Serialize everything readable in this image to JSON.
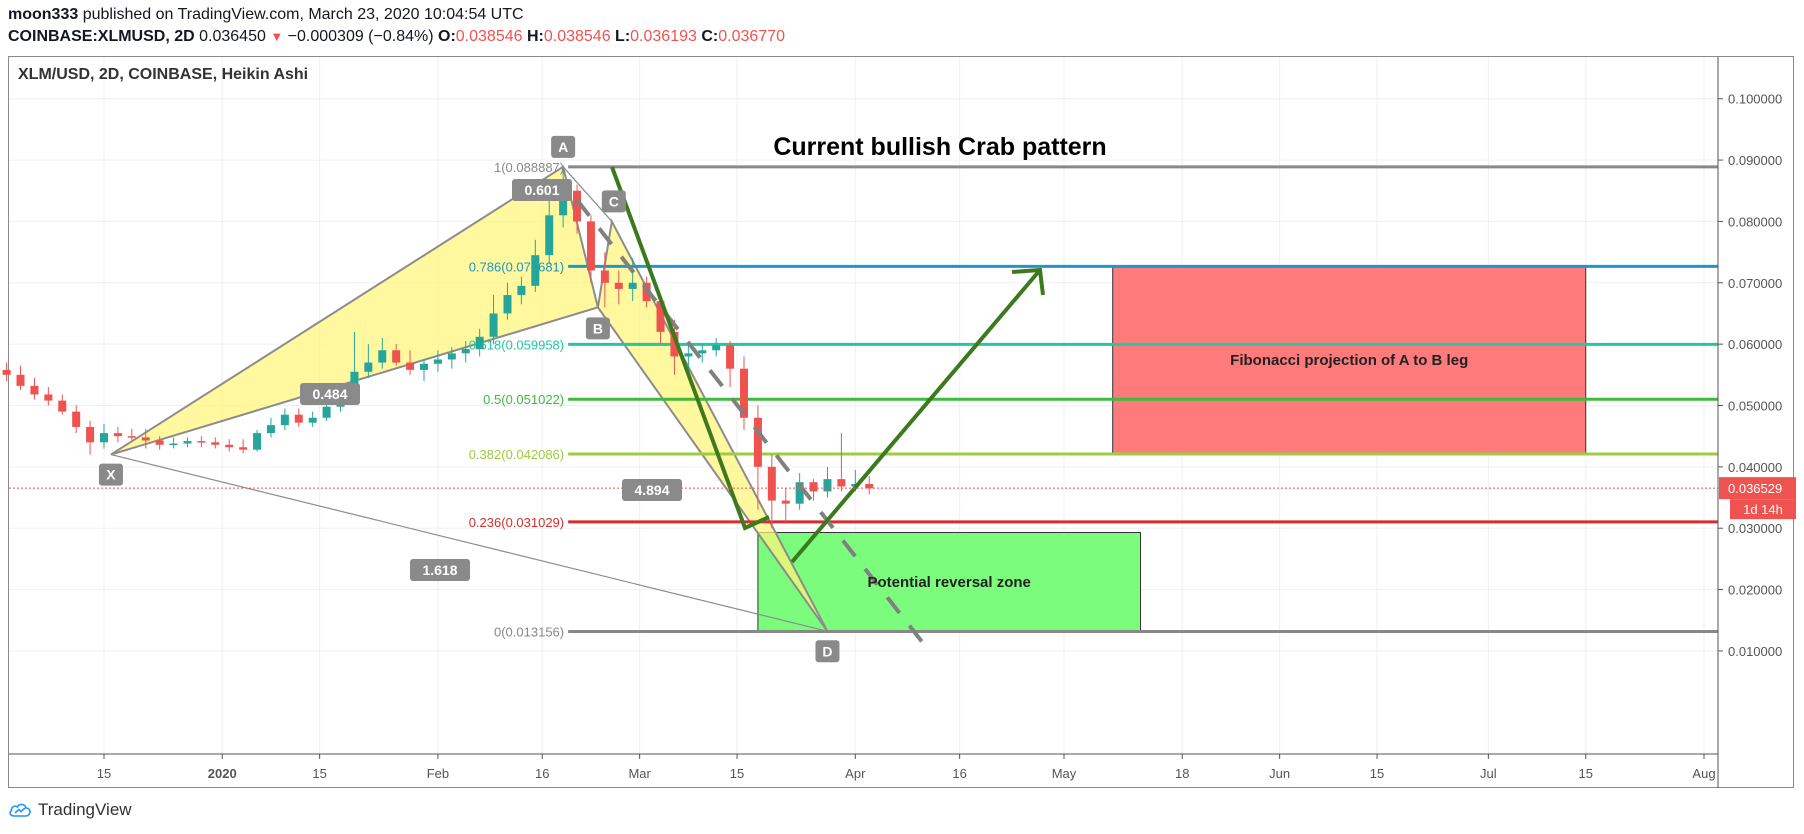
{
  "header": {
    "author": "moon333",
    "published": "published on TradingView.com, March 23, 2020 10:04:54 UTC",
    "symbol": "COINBASE:XLMUSD, 2D",
    "last": "0.036450",
    "change": "−0.000309 (−0.84%)",
    "o_label": "O:",
    "o": "0.038546",
    "h_label": "H:",
    "h": "0.038546",
    "l_label": "L:",
    "l": "0.036193",
    "c_label": "C:",
    "c": "0.036770"
  },
  "chart_title": "XLM/USD, 2D, COINBASE, Heikin Ashi",
  "branding": "TradingView",
  "chart_data": {
    "type": "candlestick",
    "style": "Heikin Ashi",
    "title": "XLM/USD, 2D, COINBASE, Heikin Ashi",
    "colors": {
      "up": "#26a69a",
      "down": "#ef5350",
      "neutral": "#f7a532"
    },
    "y_axis": {
      "range": [
        -0.0068,
        0.1068
      ],
      "ticks": [
        "0.010000",
        "0.020000",
        "0.030000",
        "0.040000",
        "0.050000",
        "0.060000",
        "0.070000",
        "0.080000",
        "0.090000",
        "0.100000"
      ],
      "last_price_label": "0.036529",
      "countdown_label": "1d 14h"
    },
    "x_axis": {
      "ticks": [
        {
          "label": "15",
          "date": "2019-12-15"
        },
        {
          "label": "2020",
          "date": "2020-01-01",
          "bold": true
        },
        {
          "label": "15",
          "date": "2020-01-15"
        },
        {
          "label": "Feb",
          "date": "2020-02-01"
        },
        {
          "label": "16",
          "date": "2020-02-16"
        },
        {
          "label": "Mar",
          "date": "2020-03-01"
        },
        {
          "label": "15",
          "date": "2020-03-15"
        },
        {
          "label": "Apr",
          "date": "2020-04-01"
        },
        {
          "label": "16",
          "date": "2020-04-16"
        },
        {
          "label": "May",
          "date": "2020-05-01"
        },
        {
          "label": "18",
          "date": "2020-05-18"
        },
        {
          "label": "Jun",
          "date": "2020-06-01"
        },
        {
          "label": "15",
          "date": "2020-06-15"
        },
        {
          "label": "Jul",
          "date": "2020-07-01"
        },
        {
          "label": "15",
          "date": "2020-07-15"
        },
        {
          "label": "Aug",
          "date": "2020-08-01"
        }
      ]
    },
    "candles": [
      {
        "date": "2019-11-25",
        "open": 0.0573,
        "high": 0.06,
        "low": 0.054,
        "close": 0.057
      },
      {
        "date": "2019-11-27",
        "open": 0.057,
        "high": 0.059,
        "low": 0.0548,
        "close": 0.0562
      },
      {
        "date": "2019-11-29",
        "open": 0.0562,
        "high": 0.0575,
        "low": 0.0545,
        "close": 0.0558
      },
      {
        "date": "2019-12-01",
        "open": 0.0558,
        "high": 0.057,
        "low": 0.054,
        "close": 0.055
      },
      {
        "date": "2019-12-03",
        "open": 0.055,
        "high": 0.0565,
        "low": 0.0525,
        "close": 0.0532
      },
      {
        "date": "2019-12-05",
        "open": 0.0532,
        "high": 0.0545,
        "low": 0.051,
        "close": 0.0518
      },
      {
        "date": "2019-12-07",
        "open": 0.0518,
        "high": 0.053,
        "low": 0.05,
        "close": 0.0508
      },
      {
        "date": "2019-12-09",
        "open": 0.0508,
        "high": 0.0518,
        "low": 0.0485,
        "close": 0.049
      },
      {
        "date": "2019-12-11",
        "open": 0.049,
        "high": 0.05,
        "low": 0.0455,
        "close": 0.0465
      },
      {
        "date": "2019-12-13",
        "open": 0.0465,
        "high": 0.0475,
        "low": 0.042,
        "close": 0.044
      },
      {
        "date": "2019-12-15",
        "open": 0.044,
        "high": 0.047,
        "low": 0.043,
        "close": 0.0455
      },
      {
        "date": "2019-12-17",
        "open": 0.0455,
        "high": 0.0465,
        "low": 0.044,
        "close": 0.045
      },
      {
        "date": "2019-12-19",
        "open": 0.045,
        "high": 0.0462,
        "low": 0.0442,
        "close": 0.0448
      },
      {
        "date": "2019-12-21",
        "open": 0.0448,
        "high": 0.0462,
        "low": 0.043,
        "close": 0.0443
      },
      {
        "date": "2019-12-23",
        "open": 0.0443,
        "high": 0.045,
        "low": 0.0428,
        "close": 0.0436
      },
      {
        "date": "2019-12-25",
        "open": 0.0436,
        "high": 0.0448,
        "low": 0.043,
        "close": 0.0438
      },
      {
        "date": "2019-12-27",
        "open": 0.0438,
        "high": 0.0448,
        "low": 0.0432,
        "close": 0.0442
      },
      {
        "date": "2019-12-29",
        "open": 0.0442,
        "high": 0.045,
        "low": 0.0432,
        "close": 0.044
      },
      {
        "date": "2019-12-31",
        "open": 0.044,
        "high": 0.0448,
        "low": 0.043,
        "close": 0.0436
      },
      {
        "date": "2020-01-02",
        "open": 0.0436,
        "high": 0.0445,
        "low": 0.0425,
        "close": 0.0432
      },
      {
        "date": "2020-01-04",
        "open": 0.0432,
        "high": 0.0445,
        "low": 0.0422,
        "close": 0.0428
      },
      {
        "date": "2020-01-06",
        "open": 0.0428,
        "high": 0.046,
        "low": 0.0425,
        "close": 0.0455
      },
      {
        "date": "2020-01-08",
        "open": 0.0455,
        "high": 0.048,
        "low": 0.0448,
        "close": 0.0468
      },
      {
        "date": "2020-01-10",
        "open": 0.0468,
        "high": 0.0495,
        "low": 0.046,
        "close": 0.0485
      },
      {
        "date": "2020-01-12",
        "open": 0.0485,
        "high": 0.0495,
        "low": 0.0465,
        "close": 0.0472
      },
      {
        "date": "2020-01-14",
        "open": 0.0472,
        "high": 0.049,
        "low": 0.0465,
        "close": 0.048
      },
      {
        "date": "2020-01-16",
        "open": 0.048,
        "high": 0.0505,
        "low": 0.0475,
        "close": 0.0498
      },
      {
        "date": "2020-01-18",
        "open": 0.0498,
        "high": 0.053,
        "low": 0.049,
        "close": 0.0522
      },
      {
        "date": "2020-01-20",
        "open": 0.0522,
        "high": 0.062,
        "low": 0.0515,
        "close": 0.0555
      },
      {
        "date": "2020-01-22",
        "open": 0.0555,
        "high": 0.06,
        "low": 0.0545,
        "close": 0.057
      },
      {
        "date": "2020-01-24",
        "open": 0.057,
        "high": 0.061,
        "low": 0.056,
        "close": 0.059
      },
      {
        "date": "2020-01-26",
        "open": 0.059,
        "high": 0.06,
        "low": 0.0565,
        "close": 0.057
      },
      {
        "date": "2020-01-28",
        "open": 0.057,
        "high": 0.059,
        "low": 0.055,
        "close": 0.0558
      },
      {
        "date": "2020-01-30",
        "open": 0.0558,
        "high": 0.0575,
        "low": 0.054,
        "close": 0.0568
      },
      {
        "date": "2020-02-01",
        "open": 0.0568,
        "high": 0.059,
        "low": 0.0555,
        "close": 0.0575
      },
      {
        "date": "2020-02-03",
        "open": 0.0575,
        "high": 0.0595,
        "low": 0.056,
        "close": 0.0585
      },
      {
        "date": "2020-02-05",
        "open": 0.0585,
        "high": 0.0605,
        "low": 0.057,
        "close": 0.0592
      },
      {
        "date": "2020-02-07",
        "open": 0.0592,
        "high": 0.0625,
        "low": 0.058,
        "close": 0.0612
      },
      {
        "date": "2020-02-09",
        "open": 0.0612,
        "high": 0.068,
        "low": 0.06,
        "close": 0.065
      },
      {
        "date": "2020-02-11",
        "open": 0.065,
        "high": 0.07,
        "low": 0.064,
        "close": 0.068
      },
      {
        "date": "2020-02-13",
        "open": 0.068,
        "high": 0.071,
        "low": 0.0665,
        "close": 0.0695
      },
      {
        "date": "2020-02-15",
        "open": 0.0695,
        "high": 0.077,
        "low": 0.0685,
        "close": 0.0745
      },
      {
        "date": "2020-02-17",
        "open": 0.0745,
        "high": 0.086,
        "low": 0.073,
        "close": 0.081
      },
      {
        "date": "2020-02-19",
        "open": 0.081,
        "high": 0.0889,
        "low": 0.079,
        "close": 0.085
      },
      {
        "date": "2020-02-21",
        "open": 0.085,
        "high": 0.086,
        "low": 0.078,
        "close": 0.08
      },
      {
        "date": "2020-02-23",
        "open": 0.08,
        "high": 0.081,
        "low": 0.07,
        "close": 0.072
      },
      {
        "date": "2020-02-25",
        "open": 0.072,
        "high": 0.075,
        "low": 0.066,
        "close": 0.07
      },
      {
        "date": "2020-02-27",
        "open": 0.07,
        "high": 0.072,
        "low": 0.0665,
        "close": 0.069
      },
      {
        "date": "2020-02-29",
        "open": 0.069,
        "high": 0.074,
        "low": 0.067,
        "close": 0.07
      },
      {
        "date": "2020-03-02",
        "open": 0.07,
        "high": 0.071,
        "low": 0.066,
        "close": 0.067
      },
      {
        "date": "2020-03-04",
        "open": 0.067,
        "high": 0.068,
        "low": 0.06,
        "close": 0.062
      },
      {
        "date": "2020-03-06",
        "open": 0.062,
        "high": 0.064,
        "low": 0.055,
        "close": 0.058
      },
      {
        "date": "2020-03-08",
        "open": 0.058,
        "high": 0.06,
        "low": 0.056,
        "close": 0.0585
      },
      {
        "date": "2020-03-10",
        "open": 0.0585,
        "high": 0.06,
        "low": 0.057,
        "close": 0.059
      },
      {
        "date": "2020-03-12",
        "open": 0.059,
        "high": 0.061,
        "low": 0.058,
        "close": 0.0598
      },
      {
        "date": "2020-03-14",
        "open": 0.0598,
        "high": 0.0605,
        "low": 0.053,
        "close": 0.056
      },
      {
        "date": "2020-03-16",
        "open": 0.056,
        "high": 0.058,
        "low": 0.046,
        "close": 0.048
      },
      {
        "date": "2020-03-18",
        "open": 0.048,
        "high": 0.05,
        "low": 0.033,
        "close": 0.04
      },
      {
        "date": "2020-03-20",
        "open": 0.04,
        "high": 0.042,
        "low": 0.03,
        "close": 0.0345
      },
      {
        "date": "2020-03-22",
        "open": 0.0345,
        "high": 0.0365,
        "low": 0.031,
        "close": 0.034
      },
      {
        "date": "2020-03-24",
        "open": 0.034,
        "high": 0.039,
        "low": 0.033,
        "close": 0.0375
      },
      {
        "date": "2020-03-26",
        "open": 0.0375,
        "high": 0.038,
        "low": 0.0345,
        "close": 0.036
      },
      {
        "date": "2020-03-28",
        "open": 0.036,
        "high": 0.04,
        "low": 0.035,
        "close": 0.038
      },
      {
        "date": "2020-03-30",
        "open": 0.038,
        "high": 0.0455,
        "low": 0.036,
        "close": 0.0368
      },
      {
        "date": "2020-04-01",
        "open": 0.0368,
        "high": 0.0395,
        "low": 0.036,
        "close": 0.0372
      },
      {
        "date": "2020-04-03",
        "open": 0.0372,
        "high": 0.0385,
        "low": 0.0355,
        "close": 0.0365
      }
    ],
    "annotations": {
      "texts": [
        "Current bullish Crab pattern",
        "Fibonacci projection of A to B leg",
        "Potential reversal zone"
      ],
      "pattern_points": [
        {
          "label": "X",
          "date": "2019-12-16",
          "price": 0.042
        },
        {
          "label": "A",
          "date": "2020-02-19",
          "price": 0.0889
        },
        {
          "label": "B",
          "date": "2020-02-24",
          "price": 0.066
        },
        {
          "label": "C",
          "date": "2020-02-26",
          "price": 0.08
        },
        {
          "label": "D",
          "date": "2020-03-28",
          "price": 0.0132
        }
      ],
      "ratios": [
        {
          "label": "0.484"
        },
        {
          "label": "0.601"
        },
        {
          "label": "4.894"
        },
        {
          "label": "1.618"
        }
      ],
      "fib_levels": [
        {
          "ratio": "1",
          "price": "0.088887",
          "color": "#888888"
        },
        {
          "ratio": "0.786",
          "price": "0.072681",
          "color": "#2196c9"
        },
        {
          "ratio": "0.618",
          "price": "0.059958",
          "color": "#26c6a0"
        },
        {
          "ratio": "0.5",
          "price": "0.051022",
          "color": "#3cbb3c"
        },
        {
          "ratio": "0.382",
          "price": "0.042086",
          "color": "#9ccc40"
        },
        {
          "ratio": "0.236",
          "price": "0.031029",
          "color": "#d32f2f"
        },
        {
          "ratio": "0",
          "price": "0.013156",
          "color": "#888888"
        }
      ],
      "fib_zone": {
        "from": "2020-05-08",
        "to": "2020-07-15",
        "price_low": 0.042086,
        "price_high": 0.072681,
        "color": "#ff7b7b"
      },
      "reversal_zone": {
        "from": "2020-03-18",
        "to": "2020-05-12",
        "price_low": 0.013156,
        "price_high": 0.0293,
        "color": "#7cfc7c"
      }
    }
  }
}
